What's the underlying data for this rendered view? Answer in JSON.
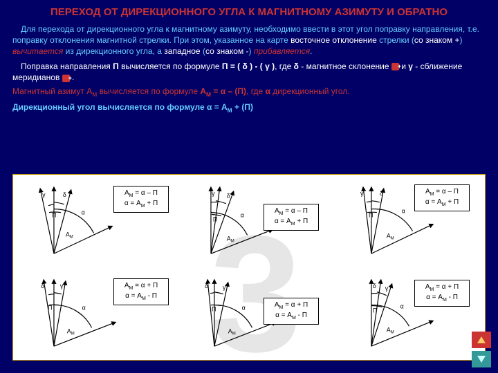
{
  "title": "ПЕРЕХОД ОТ ДИРЕКЦИОННОГО УГЛА К МАГНИТНОМУ АЗИМУТУ И ОБРАТНО",
  "para1_a": "Для перехода от дирекционного угла к магнитному азимуту, необходимо ввести в этот угол поправку направления, т.е. поправку отклонения магнитной стрелки. При этом, указанное на карте ",
  "para1_b": "восточное отклонение",
  "para1_c": " стрелки (",
  "para1_d": "со знаком +",
  "para1_e": ") ",
  "para1_f": "вычитается",
  "para1_g": " из дирекционного угла, а ",
  "para1_h": "западное",
  "para1_i": " (",
  "para1_j": "со знаком -",
  "para1_k": ") ",
  "para1_l": "прибавляется",
  "para1_m": ".",
  "para2_a": "Поправка направления ",
  "para2_b": "П",
  "para2_c": " вычисляется по формуле ",
  "para2_d": "П = ( δ ) - ( γ )",
  "para2_e": ", где ",
  "para2_f": "δ",
  "para2_g": " - магнитное склонение ",
  "para2_h": " и ",
  "para2_i": "γ",
  "para2_j": " - сближение меридианов ",
  "para2_k": " .",
  "para3_a": "Магнитный азимут А",
  "para3_b": "М",
  "para3_c": " вычисляется по формуле ",
  "para3_d": "А",
  "para3_d2": "М",
  "para3_e": " = α – (П)",
  "para3_f": ", где ",
  "para3_g": "α",
  "para3_h": " дирекционный угол.",
  "para4_a": "Дирекционный угол вычисляется по формуле ",
  "para4_b": "α = А",
  "para4_c": "М",
  "para4_d": " + (П)",
  "watermark": "3",
  "formula_minus_1": "А<sub>М</sub> = α – П",
  "formula_minus_2": "α = А<sub>М</sub> + П",
  "formula_plus_1": "А<sub>М</sub> = α + П",
  "formula_plus_2": "α = А<sub>М</sub> - П",
  "greek": {
    "gamma": "γ",
    "delta": "δ",
    "alpha": "α",
    "P": "П",
    "Am1": "А",
    "Am2": "М"
  },
  "diagram_style": {
    "line_color": "#000000",
    "line_width": 1.2,
    "arrow_color": "#000000",
    "bg_color": "#ffffff",
    "text_color": "#000000",
    "label_fontsize": 9
  },
  "colors": {
    "page_bg": "#000066",
    "title": "#cc3333",
    "blue_text": "#66ccff",
    "red_text": "#cc3333",
    "white_text": "#ffffff",
    "nav_red": "#cc3333",
    "nav_teal": "#339999",
    "diagram_border": "#cc9900"
  }
}
